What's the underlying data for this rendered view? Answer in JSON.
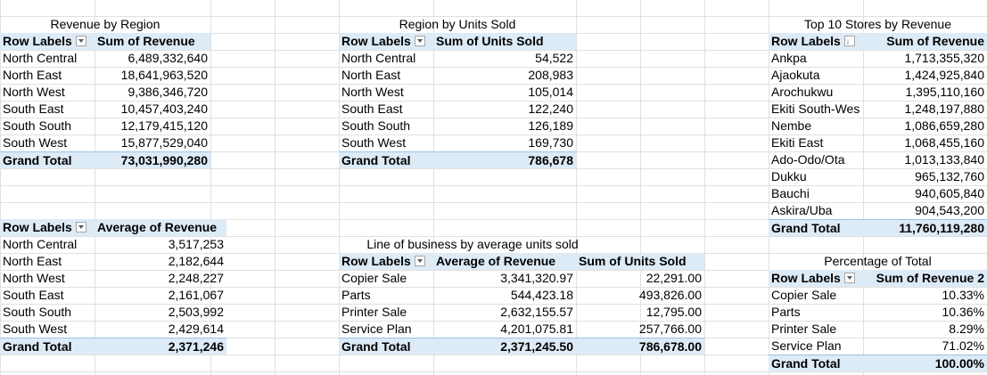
{
  "pivot_revenue_by_region": {
    "title": "Revenue by Region",
    "header": [
      "Row Labels",
      "Sum of Revenue"
    ],
    "rows": [
      [
        "North Central",
        "6,489,332,640"
      ],
      [
        "North East",
        "18,641,963,520"
      ],
      [
        "North West",
        "9,386,346,720"
      ],
      [
        "South East",
        "10,457,403,240"
      ],
      [
        "South South",
        "12,179,415,120"
      ],
      [
        "South West",
        "15,877,529,040"
      ]
    ],
    "total": [
      "Grand Total",
      "73,031,990,280"
    ]
  },
  "pivot_region_units": {
    "title": "Region by Units Sold",
    "header": [
      "Row Labels",
      "Sum of Units Sold"
    ],
    "rows": [
      [
        "North Central",
        "54,522"
      ],
      [
        "North East",
        "208,983"
      ],
      [
        "North West",
        "105,014"
      ],
      [
        "South East",
        "122,240"
      ],
      [
        "South South",
        "126,189"
      ],
      [
        "South West",
        "169,730"
      ]
    ],
    "total": [
      "Grand Total",
      "786,678"
    ]
  },
  "pivot_top_stores": {
    "title": "Top 10 Stores by Revenue",
    "header": [
      "Row Labels",
      "Sum of Revenue"
    ],
    "rows": [
      [
        "Ankpa",
        "1,713,355,320"
      ],
      [
        "Ajaokuta",
        "1,424,925,840"
      ],
      [
        "Arochukwu",
        "1,395,110,160"
      ],
      [
        "Ekiti South-Wes",
        "1,248,197,880"
      ],
      [
        "Nembe",
        "1,086,659,280"
      ],
      [
        "Ekiti East",
        "1,068,455,160"
      ],
      [
        "Ado-Odo/Ota",
        "1,013,133,840"
      ],
      [
        "Dukku",
        "965,132,760"
      ],
      [
        "Bauchi",
        "940,605,840"
      ],
      [
        "Askira/Uba",
        "904,543,200"
      ]
    ],
    "total": [
      "Grand Total",
      "11,760,119,280"
    ]
  },
  "pivot_avg_revenue": {
    "header": [
      "Row Labels",
      "Average of Revenue"
    ],
    "rows": [
      [
        "North Central",
        "3,517,253"
      ],
      [
        "North East",
        "2,182,644"
      ],
      [
        "North West",
        "2,248,227"
      ],
      [
        "South East",
        "2,161,067"
      ],
      [
        "South South",
        "2,503,992"
      ],
      [
        "South West",
        "2,429,614"
      ]
    ],
    "total": [
      "Grand Total",
      "2,371,246"
    ]
  },
  "pivot_line_of_business": {
    "title": "Line of business by average units sold",
    "header": [
      "Row Labels",
      "Average of Revenue",
      "Sum of Units Sold"
    ],
    "rows": [
      [
        "Copier Sale",
        "3,341,320.97",
        "22,291.00"
      ],
      [
        "Parts",
        "544,423.18",
        "493,826.00"
      ],
      [
        "Printer Sale",
        "2,632,155.57",
        "12,795.00"
      ],
      [
        "Service Plan",
        "4,201,075.81",
        "257,766.00"
      ]
    ],
    "total": [
      "Grand Total",
      "2,371,245.50",
      "786,678.00"
    ]
  },
  "pivot_percentage": {
    "title": "Percentage of Total",
    "header": [
      "Row Labels",
      "Sum of Revenue 2"
    ],
    "rows": [
      [
        "Copier Sale",
        "10.33%"
      ],
      [
        "Parts",
        "10.36%"
      ],
      [
        "Printer Sale",
        "8.29%"
      ],
      [
        "Service Plan",
        "71.02%"
      ]
    ],
    "total": [
      "Grand Total",
      "100.00%"
    ]
  }
}
